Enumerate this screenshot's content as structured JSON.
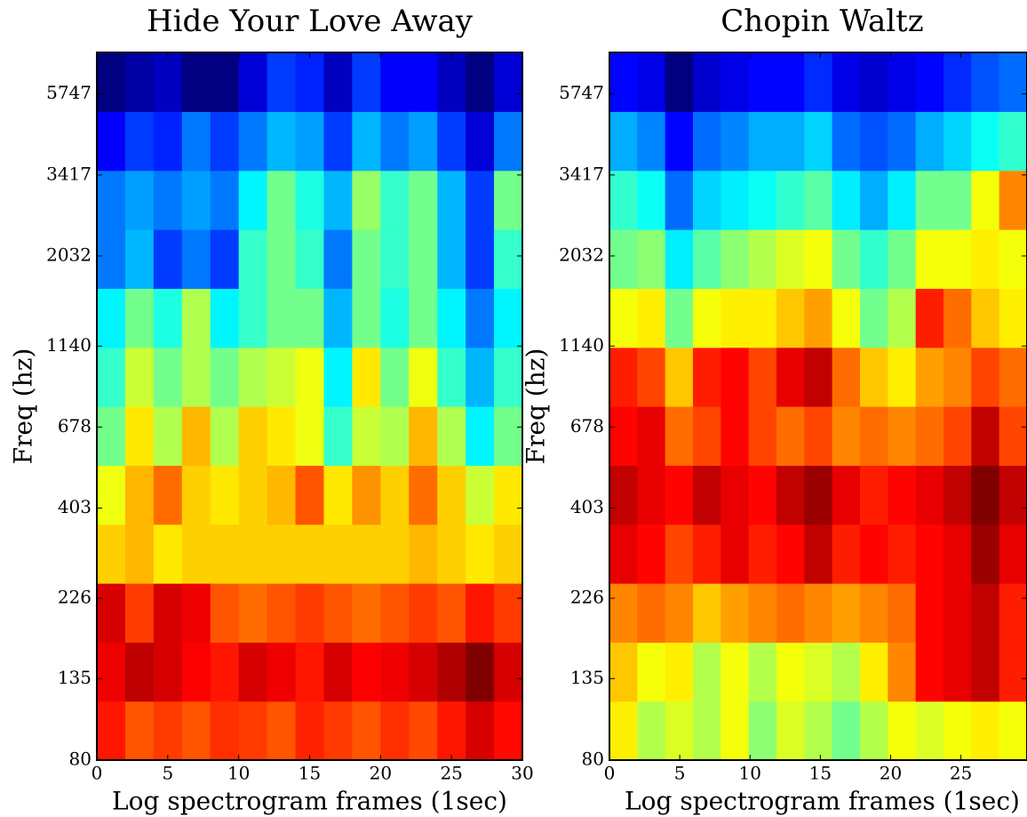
{
  "chart_data": [
    {
      "type": "heatmap",
      "title": "Hide Your Love Away",
      "xlabel": "Log spectrogram frames (1sec)",
      "ylabel": "Freq (hz)",
      "xlim": [
        0,
        30
      ],
      "xticks": [
        0,
        5,
        10,
        15,
        20,
        25,
        30
      ],
      "ylim": [
        80,
        7500
      ],
      "yscale": "log",
      "yticks": [
        80,
        135,
        226,
        403,
        678,
        1140,
        2032,
        3417,
        5747
      ],
      "cmap": "jet",
      "values": [
        [
          0.85,
          0.8,
          0.82,
          0.8,
          0.83,
          0.82,
          0.8,
          0.84,
          0.82,
          0.8,
          0.83,
          0.81,
          0.85,
          0.9,
          0.86
        ],
        [
          0.88,
          0.92,
          0.9,
          0.87,
          0.85,
          0.9,
          0.88,
          0.85,
          0.9,
          0.87,
          0.88,
          0.9,
          0.93,
          0.97,
          0.9
        ],
        [
          0.9,
          0.82,
          0.9,
          0.88,
          0.8,
          0.78,
          0.8,
          0.82,
          0.8,
          0.78,
          0.8,
          0.82,
          0.8,
          0.85,
          0.82
        ],
        [
          0.7,
          0.72,
          0.68,
          0.7,
          0.7,
          0.7,
          0.7,
          0.7,
          0.7,
          0.7,
          0.7,
          0.72,
          0.7,
          0.68,
          0.7
        ],
        [
          0.65,
          0.72,
          0.78,
          0.7,
          0.68,
          0.7,
          0.72,
          0.8,
          0.68,
          0.75,
          0.7,
          0.78,
          0.7,
          0.62,
          0.68
        ],
        [
          0.55,
          0.68,
          0.6,
          0.72,
          0.6,
          0.7,
          0.68,
          0.65,
          0.5,
          0.62,
          0.6,
          0.72,
          0.6,
          0.45,
          0.55
        ],
        [
          0.5,
          0.62,
          0.55,
          0.6,
          0.55,
          0.6,
          0.62,
          0.65,
          0.45,
          0.68,
          0.55,
          0.65,
          0.5,
          0.4,
          0.5
        ],
        [
          0.45,
          0.55,
          0.48,
          0.6,
          0.45,
          0.5,
          0.55,
          0.55,
          0.4,
          0.55,
          0.48,
          0.55,
          0.45,
          0.35,
          0.45
        ],
        [
          0.35,
          0.4,
          0.3,
          0.35,
          0.3,
          0.5,
          0.55,
          0.5,
          0.35,
          0.55,
          0.5,
          0.55,
          0.4,
          0.3,
          0.5
        ],
        [
          0.35,
          0.38,
          0.35,
          0.38,
          0.35,
          0.45,
          0.55,
          0.48,
          0.4,
          0.58,
          0.5,
          0.55,
          0.4,
          0.3,
          0.55
        ],
        [
          0.25,
          0.3,
          0.28,
          0.35,
          0.3,
          0.35,
          0.4,
          0.38,
          0.3,
          0.4,
          0.35,
          0.38,
          0.3,
          0.22,
          0.35
        ],
        [
          0.15,
          0.18,
          0.2,
          0.15,
          0.15,
          0.22,
          0.3,
          0.28,
          0.2,
          0.3,
          0.25,
          0.25,
          0.2,
          0.15,
          0.22
        ]
      ]
    },
    {
      "type": "heatmap",
      "title": "Chopin Waltz",
      "xlabel": "Log spectrogram frames (1sec)",
      "ylabel": "Freq (hz)",
      "xlim": [
        0,
        29.7
      ],
      "xticks": [
        0,
        5,
        10,
        15,
        20,
        25
      ],
      "ylim": [
        80,
        7500
      ],
      "yscale": "log",
      "yticks": [
        80,
        135,
        226,
        403,
        678,
        1140,
        2032,
        3417,
        5747
      ],
      "cmap": "jet",
      "values": [
        [
          0.62,
          0.55,
          0.58,
          0.55,
          0.6,
          0.52,
          0.58,
          0.55,
          0.5,
          0.55,
          0.6,
          0.58,
          0.6,
          0.62,
          0.6
        ],
        [
          0.65,
          0.6,
          0.62,
          0.55,
          0.6,
          0.55,
          0.6,
          0.58,
          0.55,
          0.62,
          0.7,
          0.8,
          0.82,
          0.85,
          0.78
        ],
        [
          0.7,
          0.72,
          0.7,
          0.65,
          0.68,
          0.7,
          0.72,
          0.7,
          0.68,
          0.7,
          0.72,
          0.8,
          0.82,
          0.85,
          0.78
        ],
        [
          0.82,
          0.8,
          0.75,
          0.78,
          0.82,
          0.78,
          0.8,
          0.85,
          0.78,
          0.8,
          0.78,
          0.8,
          0.82,
          0.88,
          0.82
        ],
        [
          0.85,
          0.82,
          0.8,
          0.85,
          0.82,
          0.8,
          0.85,
          0.88,
          0.82,
          0.78,
          0.8,
          0.82,
          0.85,
          0.9,
          0.85
        ],
        [
          0.8,
          0.82,
          0.72,
          0.75,
          0.8,
          0.75,
          0.72,
          0.75,
          0.7,
          0.72,
          0.7,
          0.72,
          0.75,
          0.85,
          0.75
        ],
        [
          0.78,
          0.75,
          0.65,
          0.78,
          0.8,
          0.75,
          0.82,
          0.85,
          0.72,
          0.65,
          0.62,
          0.68,
          0.7,
          0.75,
          0.72
        ],
        [
          0.6,
          0.62,
          0.5,
          0.6,
          0.62,
          0.62,
          0.65,
          0.68,
          0.6,
          0.5,
          0.55,
          0.78,
          0.72,
          0.65,
          0.62
        ],
        [
          0.5,
          0.52,
          0.4,
          0.48,
          0.52,
          0.55,
          0.58,
          0.6,
          0.5,
          0.45,
          0.5,
          0.6,
          0.6,
          0.62,
          0.6
        ],
        [
          0.45,
          0.42,
          0.3,
          0.38,
          0.4,
          0.42,
          0.45,
          0.48,
          0.4,
          0.35,
          0.4,
          0.5,
          0.5,
          0.6,
          0.7
        ],
        [
          0.35,
          0.32,
          0.22,
          0.3,
          0.32,
          0.35,
          0.35,
          0.38,
          0.3,
          0.28,
          0.3,
          0.35,
          0.38,
          0.42,
          0.45
        ],
        [
          0.22,
          0.2,
          0.12,
          0.18,
          0.2,
          0.22,
          0.22,
          0.25,
          0.2,
          0.18,
          0.2,
          0.22,
          0.25,
          0.28,
          0.3
        ]
      ]
    }
  ]
}
